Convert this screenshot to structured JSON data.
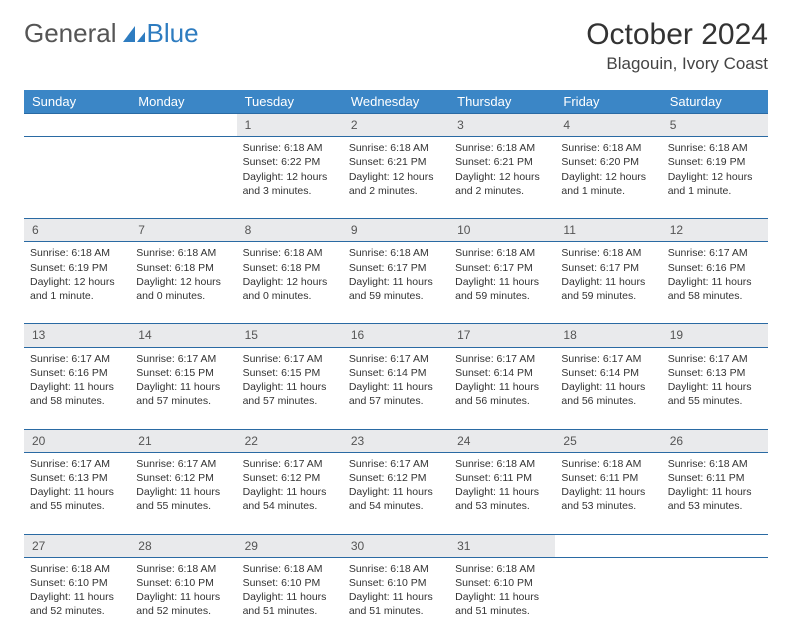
{
  "logo": {
    "text_left": "General",
    "text_right": "Blue",
    "icon_color": "#2e7cc0"
  },
  "title": "October 2024",
  "location": "Blagouin, Ivory Coast",
  "colors": {
    "header_bg": "#3b86c6",
    "header_text": "#ffffff",
    "daynum_bg": "#e9eaec",
    "border": "#2a6aa3",
    "body_text": "#333333"
  },
  "day_headers": [
    "Sunday",
    "Monday",
    "Tuesday",
    "Wednesday",
    "Thursday",
    "Friday",
    "Saturday"
  ],
  "weeks": [
    {
      "nums": [
        "",
        "",
        "1",
        "2",
        "3",
        "4",
        "5"
      ],
      "cells": [
        null,
        null,
        {
          "sunrise": "Sunrise: 6:18 AM",
          "sunset": "Sunset: 6:22 PM",
          "day1": "Daylight: 12 hours",
          "day2": "and 3 minutes."
        },
        {
          "sunrise": "Sunrise: 6:18 AM",
          "sunset": "Sunset: 6:21 PM",
          "day1": "Daylight: 12 hours",
          "day2": "and 2 minutes."
        },
        {
          "sunrise": "Sunrise: 6:18 AM",
          "sunset": "Sunset: 6:21 PM",
          "day1": "Daylight: 12 hours",
          "day2": "and 2 minutes."
        },
        {
          "sunrise": "Sunrise: 6:18 AM",
          "sunset": "Sunset: 6:20 PM",
          "day1": "Daylight: 12 hours",
          "day2": "and 1 minute."
        },
        {
          "sunrise": "Sunrise: 6:18 AM",
          "sunset": "Sunset: 6:19 PM",
          "day1": "Daylight: 12 hours",
          "day2": "and 1 minute."
        }
      ]
    },
    {
      "nums": [
        "6",
        "7",
        "8",
        "9",
        "10",
        "11",
        "12"
      ],
      "cells": [
        {
          "sunrise": "Sunrise: 6:18 AM",
          "sunset": "Sunset: 6:19 PM",
          "day1": "Daylight: 12 hours",
          "day2": "and 1 minute."
        },
        {
          "sunrise": "Sunrise: 6:18 AM",
          "sunset": "Sunset: 6:18 PM",
          "day1": "Daylight: 12 hours",
          "day2": "and 0 minutes."
        },
        {
          "sunrise": "Sunrise: 6:18 AM",
          "sunset": "Sunset: 6:18 PM",
          "day1": "Daylight: 12 hours",
          "day2": "and 0 minutes."
        },
        {
          "sunrise": "Sunrise: 6:18 AM",
          "sunset": "Sunset: 6:17 PM",
          "day1": "Daylight: 11 hours",
          "day2": "and 59 minutes."
        },
        {
          "sunrise": "Sunrise: 6:18 AM",
          "sunset": "Sunset: 6:17 PM",
          "day1": "Daylight: 11 hours",
          "day2": "and 59 minutes."
        },
        {
          "sunrise": "Sunrise: 6:18 AM",
          "sunset": "Sunset: 6:17 PM",
          "day1": "Daylight: 11 hours",
          "day2": "and 59 minutes."
        },
        {
          "sunrise": "Sunrise: 6:17 AM",
          "sunset": "Sunset: 6:16 PM",
          "day1": "Daylight: 11 hours",
          "day2": "and 58 minutes."
        }
      ]
    },
    {
      "nums": [
        "13",
        "14",
        "15",
        "16",
        "17",
        "18",
        "19"
      ],
      "cells": [
        {
          "sunrise": "Sunrise: 6:17 AM",
          "sunset": "Sunset: 6:16 PM",
          "day1": "Daylight: 11 hours",
          "day2": "and 58 minutes."
        },
        {
          "sunrise": "Sunrise: 6:17 AM",
          "sunset": "Sunset: 6:15 PM",
          "day1": "Daylight: 11 hours",
          "day2": "and 57 minutes."
        },
        {
          "sunrise": "Sunrise: 6:17 AM",
          "sunset": "Sunset: 6:15 PM",
          "day1": "Daylight: 11 hours",
          "day2": "and 57 minutes."
        },
        {
          "sunrise": "Sunrise: 6:17 AM",
          "sunset": "Sunset: 6:14 PM",
          "day1": "Daylight: 11 hours",
          "day2": "and 57 minutes."
        },
        {
          "sunrise": "Sunrise: 6:17 AM",
          "sunset": "Sunset: 6:14 PM",
          "day1": "Daylight: 11 hours",
          "day2": "and 56 minutes."
        },
        {
          "sunrise": "Sunrise: 6:17 AM",
          "sunset": "Sunset: 6:14 PM",
          "day1": "Daylight: 11 hours",
          "day2": "and 56 minutes."
        },
        {
          "sunrise": "Sunrise: 6:17 AM",
          "sunset": "Sunset: 6:13 PM",
          "day1": "Daylight: 11 hours",
          "day2": "and 55 minutes."
        }
      ]
    },
    {
      "nums": [
        "20",
        "21",
        "22",
        "23",
        "24",
        "25",
        "26"
      ],
      "cells": [
        {
          "sunrise": "Sunrise: 6:17 AM",
          "sunset": "Sunset: 6:13 PM",
          "day1": "Daylight: 11 hours",
          "day2": "and 55 minutes."
        },
        {
          "sunrise": "Sunrise: 6:17 AM",
          "sunset": "Sunset: 6:12 PM",
          "day1": "Daylight: 11 hours",
          "day2": "and 55 minutes."
        },
        {
          "sunrise": "Sunrise: 6:17 AM",
          "sunset": "Sunset: 6:12 PM",
          "day1": "Daylight: 11 hours",
          "day2": "and 54 minutes."
        },
        {
          "sunrise": "Sunrise: 6:17 AM",
          "sunset": "Sunset: 6:12 PM",
          "day1": "Daylight: 11 hours",
          "day2": "and 54 minutes."
        },
        {
          "sunrise": "Sunrise: 6:18 AM",
          "sunset": "Sunset: 6:11 PM",
          "day1": "Daylight: 11 hours",
          "day2": "and 53 minutes."
        },
        {
          "sunrise": "Sunrise: 6:18 AM",
          "sunset": "Sunset: 6:11 PM",
          "day1": "Daylight: 11 hours",
          "day2": "and 53 minutes."
        },
        {
          "sunrise": "Sunrise: 6:18 AM",
          "sunset": "Sunset: 6:11 PM",
          "day1": "Daylight: 11 hours",
          "day2": "and 53 minutes."
        }
      ]
    },
    {
      "nums": [
        "27",
        "28",
        "29",
        "30",
        "31",
        "",
        ""
      ],
      "cells": [
        {
          "sunrise": "Sunrise: 6:18 AM",
          "sunset": "Sunset: 6:10 PM",
          "day1": "Daylight: 11 hours",
          "day2": "and 52 minutes."
        },
        {
          "sunrise": "Sunrise: 6:18 AM",
          "sunset": "Sunset: 6:10 PM",
          "day1": "Daylight: 11 hours",
          "day2": "and 52 minutes."
        },
        {
          "sunrise": "Sunrise: 6:18 AM",
          "sunset": "Sunset: 6:10 PM",
          "day1": "Daylight: 11 hours",
          "day2": "and 51 minutes."
        },
        {
          "sunrise": "Sunrise: 6:18 AM",
          "sunset": "Sunset: 6:10 PM",
          "day1": "Daylight: 11 hours",
          "day2": "and 51 minutes."
        },
        {
          "sunrise": "Sunrise: 6:18 AM",
          "sunset": "Sunset: 6:10 PM",
          "day1": "Daylight: 11 hours",
          "day2": "and 51 minutes."
        },
        null,
        null
      ]
    }
  ]
}
